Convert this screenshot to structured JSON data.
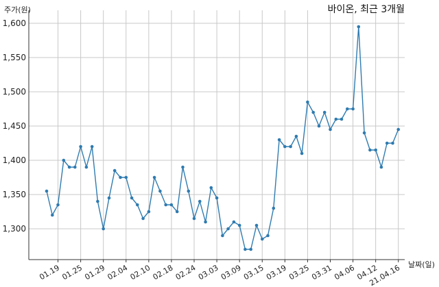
{
  "chart_data": {
    "type": "line",
    "title": "바이온, 최근 3개월",
    "ylabel": "주가(원)",
    "xlabel": "날짜(일)",
    "ylim": [
      1260,
      1615
    ],
    "y_ticks": [
      "1,300",
      "1,350",
      "1,400",
      "1,450",
      "1,500",
      "1,550",
      "1,600"
    ],
    "y_tick_values": [
      1300,
      1350,
      1400,
      1450,
      1500,
      1550,
      1600
    ],
    "x_ticks": [
      "01.19",
      "01.25",
      "01.29",
      "02.04",
      "02.10",
      "02.18",
      "02.24",
      "03.03",
      "03.09",
      "03.15",
      "03.19",
      "03.25",
      "03.31",
      "04.06",
      "04.12",
      "21.04.16"
    ],
    "x_tick_index": [
      2,
      6,
      10,
      14,
      18,
      22,
      26,
      30,
      34,
      38,
      42,
      46,
      50,
      54,
      58,
      62
    ],
    "grid": true,
    "legend": "none",
    "colors": {
      "line": "#2f7bb0",
      "marker": "#2f7bb0"
    },
    "series": [
      {
        "values": [
          1355,
          1320,
          1335,
          1400,
          1390,
          1390,
          1420,
          1390,
          1420,
          1340,
          1300,
          1345,
          1385,
          1375,
          1375,
          1345,
          1335,
          1315,
          1325,
          1375,
          1355,
          1335,
          1335,
          1325,
          1390,
          1355,
          1315,
          1340,
          1310,
          1360,
          1345,
          1290,
          1300,
          1310,
          1305,
          1270,
          1270,
          1305,
          1285,
          1290,
          1330,
          1430,
          1420,
          1420,
          1435,
          1410,
          1485,
          1470,
          1450,
          1470,
          1445,
          1460,
          1460,
          1475,
          1475,
          1595,
          1440,
          1415,
          1415,
          1390,
          1425,
          1425,
          1445
        ]
      }
    ]
  }
}
